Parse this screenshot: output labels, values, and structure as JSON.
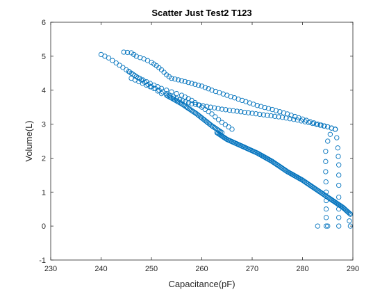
{
  "chart_data": {
    "type": "scatter",
    "title": "Scatter Just Test2 T123",
    "xlabel": "Capacitance(pF)",
    "ylabel": "Volume(L)",
    "xlim": [
      230,
      290
    ],
    "ylim": [
      -1,
      6
    ],
    "x_ticks": [
      "230",
      "240",
      "250",
      "260",
      "270",
      "280",
      "290"
    ],
    "y_ticks": [
      "-1",
      "0",
      "1",
      "2",
      "3",
      "4",
      "5",
      "6"
    ],
    "grid": false,
    "marker": "open-circle",
    "marker_color": "#0072BD",
    "series": [
      {
        "segments": [
          {
            "points": [
              [
                240.0,
                5.05
              ],
              [
                241.5,
                4.95
              ],
              [
                243,
                4.8
              ],
              [
                245,
                4.6
              ],
              [
                247,
                4.4
              ],
              [
                249,
                4.25
              ],
              [
                250.5,
                4.15
              ],
              [
                252,
                4.05
              ],
              [
                254,
                3.95
              ],
              [
                256,
                3.85
              ],
              [
                258,
                3.7
              ],
              [
                260,
                3.5
              ],
              [
                262,
                3.3
              ],
              [
                264,
                3.05
              ],
              [
                266,
                2.85
              ]
            ],
            "step": 0.16
          },
          {
            "points": [
              [
                244.5,
                5.12
              ],
              [
                246,
                5.1
              ],
              [
                247,
                5.0
              ],
              [
                248.5,
                4.92
              ],
              [
                250,
                4.82
              ],
              [
                251,
                4.72
              ],
              [
                252,
                4.6
              ],
              [
                253,
                4.45
              ],
              [
                254,
                4.35
              ],
              [
                256,
                4.28
              ],
              [
                258,
                4.2
              ],
              [
                260,
                4.12
              ],
              [
                262,
                4.0
              ],
              [
                265,
                3.85
              ],
              [
                268,
                3.7
              ],
              [
                271,
                3.55
              ],
              [
                274,
                3.43
              ],
              [
                277,
                3.3
              ],
              [
                280,
                3.15
              ],
              [
                283,
                3.0
              ],
              [
                285,
                2.92
              ],
              [
                286.5,
                2.85
              ]
            ],
            "step": 0.18
          },
          {
            "points": [
              [
                245.5,
                4.55
              ],
              [
                246,
                4.35
              ],
              [
                247.5,
                4.25
              ],
              [
                249,
                4.15
              ],
              [
                250.5,
                4.05
              ],
              [
                252,
                3.9
              ]
            ],
            "step": 0.14
          },
          {
            "points": [
              [
                246,
                4.5
              ],
              [
                248,
                4.3
              ],
              [
                250,
                4.1
              ],
              [
                251.5,
                4.0
              ],
              [
                253,
                3.9
              ],
              [
                255,
                3.75
              ],
              [
                258,
                3.6
              ],
              [
                261,
                3.52
              ],
              [
                264,
                3.44
              ],
              [
                267,
                3.38
              ],
              [
                270,
                3.32
              ],
              [
                273,
                3.26
              ],
              [
                276,
                3.2
              ],
              [
                279,
                3.12
              ],
              [
                282,
                3.02
              ],
              [
                285,
                2.92
              ],
              [
                286.5,
                2.85
              ]
            ],
            "step": 0.2
          },
          {
            "points": [
              [
                286.5,
                2.85
              ],
              [
                286.8,
                2.6
              ],
              [
                287,
                2.3
              ],
              [
                287.2,
                1.8
              ],
              [
                287.2,
                1.2
              ],
              [
                287.2,
                0.5
              ],
              [
                287.2,
                0.0
              ]
            ],
            "step": 0.07
          },
          {
            "points": [
              [
                286.5,
                2.85
              ],
              [
                285.5,
                2.7
              ],
              [
                285,
                2.5
              ],
              [
                284.6,
                2.2
              ],
              [
                284.6,
                1.6
              ],
              [
                284.7,
                1.0
              ],
              [
                284.7,
                0.5
              ],
              [
                284.7,
                0.0
              ]
            ],
            "step": 0.07
          },
          {
            "points": [
              [
                283,
                0.0
              ],
              [
                285,
                0.0
              ]
            ],
            "step": 0.1
          },
          {
            "points": [
              [
                253,
                3.85
              ],
              [
                256,
                3.6
              ],
              [
                259,
                3.3
              ],
              [
                262,
                2.95
              ],
              [
                264,
                2.75
              ]
            ],
            "step": 0.45
          },
          {
            "points": [
              [
                263,
                2.75
              ],
              [
                265,
                2.55
              ],
              [
                268,
                2.35
              ],
              [
                271,
                2.15
              ],
              [
                274,
                1.9
              ],
              [
                277,
                1.6
              ],
              [
                280,
                1.35
              ],
              [
                283,
                1.05
              ],
              [
                286,
                0.75
              ],
              [
                288,
                0.55
              ],
              [
                289.5,
                0.35
              ]
            ],
            "step": 0.55
          },
          {
            "points": [
              [
                289.5,
                0.35
              ],
              [
                289.3,
                0.15
              ],
              [
                289.5,
                0.0
              ]
            ],
            "step": 0.15
          }
        ]
      }
    ]
  }
}
